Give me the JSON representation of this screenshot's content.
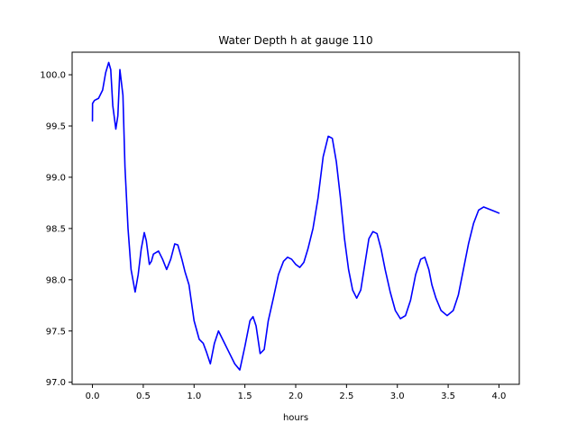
{
  "chart_data": {
    "type": "line",
    "title": "Water Depth h at gauge 110",
    "xlabel": "hours",
    "ylabel": "",
    "xlim": [
      -0.2,
      4.2
    ],
    "ylim": [
      96.98,
      100.22
    ],
    "xticks": [
      0.0,
      0.5,
      1.0,
      1.5,
      2.0,
      2.5,
      3.0,
      3.5,
      4.0
    ],
    "xtick_labels": [
      "0.0",
      "0.5",
      "1.0",
      "1.5",
      "2.0",
      "2.5",
      "3.0",
      "3.5",
      "4.0"
    ],
    "yticks": [
      97.0,
      97.5,
      98.0,
      98.5,
      99.0,
      99.5,
      100.0
    ],
    "ytick_labels": [
      "97.0",
      "97.5",
      "98.0",
      "98.5",
      "99.0",
      "99.5",
      "100.0"
    ],
    "grid": false,
    "series": [
      {
        "color": "#0000ff",
        "x": [
          0.0,
          0.001,
          0.02,
          0.06,
          0.1,
          0.13,
          0.16,
          0.18,
          0.2,
          0.23,
          0.25,
          0.27,
          0.3,
          0.32,
          0.35,
          0.38,
          0.42,
          0.45,
          0.48,
          0.51,
          0.53,
          0.56,
          0.58,
          0.6,
          0.65,
          0.69,
          0.73,
          0.77,
          0.81,
          0.84,
          0.88,
          0.91,
          0.95,
          1.0,
          1.05,
          1.09,
          1.12,
          1.16,
          1.2,
          1.24,
          1.28,
          1.34,
          1.4,
          1.45,
          1.5,
          1.55,
          1.58,
          1.61,
          1.65,
          1.69,
          1.73,
          1.78,
          1.83,
          1.88,
          1.92,
          1.96,
          2.0,
          2.04,
          2.08,
          2.12,
          2.17,
          2.22,
          2.27,
          2.32,
          2.36,
          2.4,
          2.44,
          2.48,
          2.52,
          2.56,
          2.6,
          2.64,
          2.68,
          2.72,
          2.76,
          2.8,
          2.84,
          2.88,
          2.93,
          2.98,
          3.03,
          3.08,
          3.13,
          3.18,
          3.23,
          3.27,
          3.31,
          3.34,
          3.38,
          3.43,
          3.49,
          3.55,
          3.6,
          3.65,
          3.7,
          3.75,
          3.8,
          3.85,
          3.9,
          3.95,
          4.0
        ],
        "y": [
          99.55,
          99.72,
          99.75,
          99.77,
          99.85,
          100.02,
          100.12,
          100.05,
          99.7,
          99.47,
          99.6,
          100.05,
          99.8,
          99.1,
          98.5,
          98.1,
          97.88,
          98.05,
          98.3,
          98.46,
          98.38,
          98.15,
          98.18,
          98.25,
          98.28,
          98.2,
          98.1,
          98.2,
          98.35,
          98.34,
          98.2,
          98.08,
          97.95,
          97.6,
          97.42,
          97.38,
          97.3,
          97.18,
          97.38,
          97.5,
          97.42,
          97.3,
          97.18,
          97.12,
          97.35,
          97.6,
          97.64,
          97.55,
          97.28,
          97.32,
          97.6,
          97.82,
          98.05,
          98.18,
          98.22,
          98.2,
          98.15,
          98.12,
          98.17,
          98.3,
          98.5,
          98.8,
          99.2,
          99.4,
          99.38,
          99.15,
          98.8,
          98.4,
          98.1,
          97.9,
          97.82,
          97.9,
          98.15,
          98.4,
          98.47,
          98.45,
          98.3,
          98.1,
          97.88,
          97.7,
          97.62,
          97.65,
          97.8,
          98.05,
          98.2,
          98.22,
          98.1,
          97.95,
          97.82,
          97.7,
          97.65,
          97.7,
          97.85,
          98.1,
          98.35,
          98.55,
          98.68,
          98.71,
          98.69,
          98.67,
          98.65
        ]
      }
    ]
  }
}
